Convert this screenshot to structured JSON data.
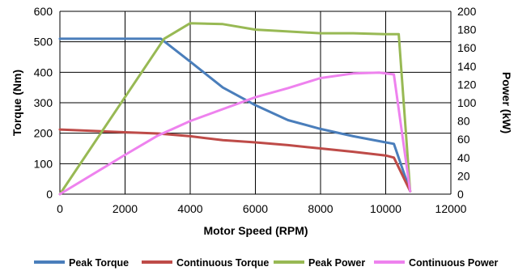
{
  "chart_data": {
    "type": "line",
    "xlabel": "Motor Speed (RPM)",
    "ylabel_left": "Torque (Nm)",
    "ylabel_right": "Power (kW)",
    "xlim": [
      0,
      12000
    ],
    "ylim_left": [
      0,
      600
    ],
    "ylim_right": [
      0,
      200
    ],
    "x_ticks": [
      0,
      2000,
      4000,
      6000,
      8000,
      10000,
      12000
    ],
    "y_left_ticks": [
      0,
      100,
      200,
      300,
      400,
      500,
      600
    ],
    "y_right_ticks": [
      0,
      20,
      40,
      60,
      80,
      100,
      120,
      140,
      160,
      180,
      200
    ],
    "grid": "horizontal",
    "legend_position": "bottom",
    "series": [
      {
        "name": "Peak Torque",
        "axis": "left",
        "color": "#4a7ebb",
        "points": [
          [
            0,
            510
          ],
          [
            3100,
            510
          ],
          [
            4000,
            435
          ],
          [
            5000,
            350
          ],
          [
            6000,
            292
          ],
          [
            7000,
            243
          ],
          [
            8000,
            214
          ],
          [
            9000,
            190
          ],
          [
            10000,
            170
          ],
          [
            10250,
            165
          ],
          [
            10750,
            10
          ]
        ]
      },
      {
        "name": "Continuous Torque",
        "axis": "left",
        "color": "#be4b48",
        "points": [
          [
            0,
            212
          ],
          [
            2000,
            203
          ],
          [
            3000,
            199
          ],
          [
            4000,
            190
          ],
          [
            5000,
            177
          ],
          [
            6000,
            170
          ],
          [
            7000,
            161
          ],
          [
            8000,
            150
          ],
          [
            9000,
            139
          ],
          [
            10000,
            127
          ],
          [
            10250,
            120
          ],
          [
            10750,
            10
          ]
        ]
      },
      {
        "name": "Peak Power",
        "axis": "right",
        "color": "#98b954",
        "points": [
          [
            0,
            0
          ],
          [
            3200,
            170
          ],
          [
            4000,
            187
          ],
          [
            5000,
            186
          ],
          [
            6000,
            180
          ],
          [
            7000,
            178
          ],
          [
            8000,
            176
          ],
          [
            9000,
            176
          ],
          [
            10000,
            175
          ],
          [
            10400,
            175
          ],
          [
            10750,
            3
          ]
        ]
      },
      {
        "name": "Continuous Power",
        "axis": "right",
        "color": "#ee82ee",
        "points": [
          [
            0,
            0
          ],
          [
            2000,
            43
          ],
          [
            3000,
            64
          ],
          [
            4000,
            80
          ],
          [
            5000,
            93
          ],
          [
            6000,
            106
          ],
          [
            7000,
            116
          ],
          [
            8000,
            127
          ],
          [
            9000,
            132
          ],
          [
            9800,
            133
          ],
          [
            10250,
            131
          ],
          [
            10750,
            3
          ]
        ]
      }
    ]
  }
}
